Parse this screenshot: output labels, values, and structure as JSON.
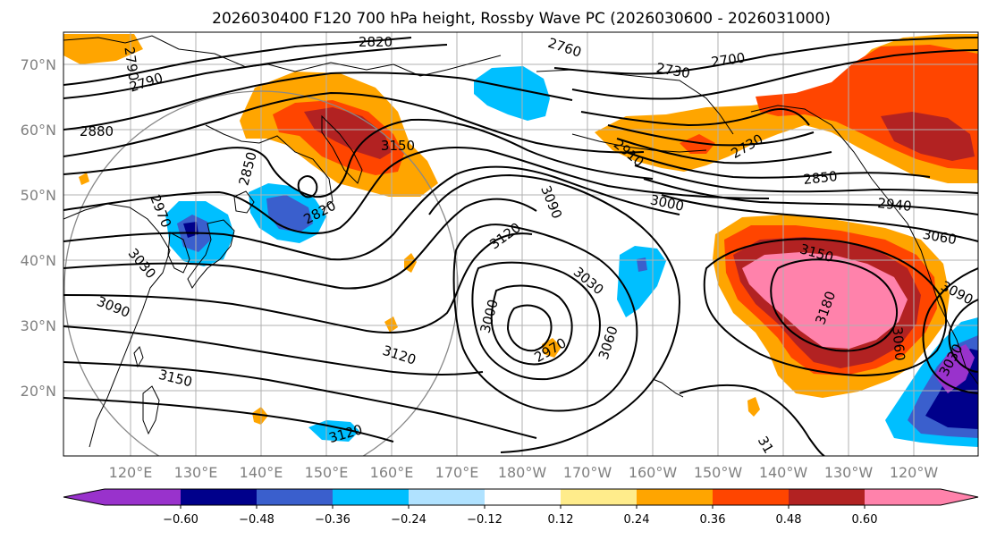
{
  "title": "2026030400 F120 700 hPa height, Rossby Wave PC (2026030600 - 2026031000)",
  "lat_labels": [
    "70°N",
    "60°N",
    "50°N",
    "40°N",
    "30°N",
    "20°N"
  ],
  "lon_labels": [
    "120°E",
    "130°E",
    "140°E",
    "150°E",
    "160°E",
    "170°E",
    "180°W",
    "170°W",
    "160°W",
    "150°W",
    "140°W",
    "130°W",
    "120°W"
  ],
  "contour_labels": [
    "2820",
    "2790",
    "2760",
    "2730",
    "2700",
    "2790",
    "2880",
    "2850",
    "2820",
    "2970",
    "3030",
    "3090",
    "3150",
    "3120",
    "3090",
    "3120",
    "3000",
    "2970",
    "3030",
    "3060",
    "3120",
    "3150",
    "2910",
    "2730",
    "2850",
    "3000",
    "2940",
    "3060",
    "3150",
    "3180",
    "3090",
    "3060",
    "3030",
    "31"
  ],
  "colorbar": {
    "tick_labels": [
      "−0.60",
      "−0.48",
      "−0.36",
      "−0.24",
      "−0.12",
      "0.12",
      "0.24",
      "0.36",
      "0.48",
      "0.60"
    ],
    "colors": [
      "#9932cc",
      "#00008b",
      "#3a5fcd",
      "#00bfff",
      "#b0e2ff",
      "#ffffff",
      "#ffec8b",
      "#ffa500",
      "#ff4500",
      "#b22222",
      "#ff82ab"
    ]
  }
}
